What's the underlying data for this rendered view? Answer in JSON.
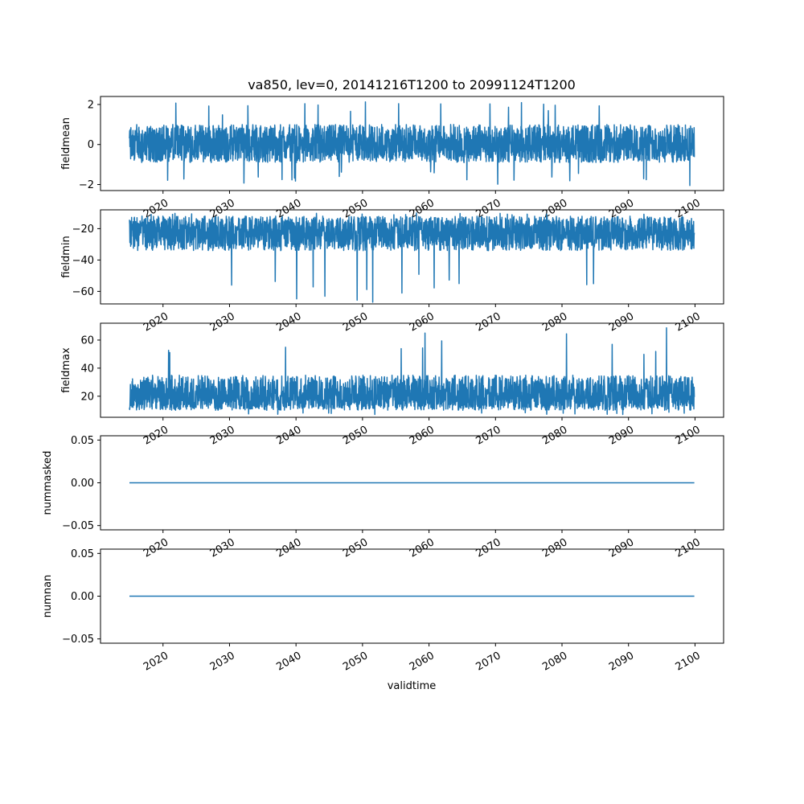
{
  "chart_data": {
    "type": "line",
    "title": "va850, lev=0, 20141216T1200 to 20991124T1200",
    "xlabel": "validtime",
    "x_range": [
      "2014-12-16",
      "2099-11-24"
    ],
    "xlim": [
      2010.6,
      2104.3
    ],
    "x_ticks": [
      "2020",
      "2030",
      "2040",
      "2050",
      "2060",
      "2070",
      "2080",
      "2090",
      "2100"
    ],
    "line_color": "#1f77b4",
    "grid": false,
    "panels": [
      {
        "ylabel": "fieldmean",
        "ylim": [
          -2.3,
          2.4
        ],
        "yticks": [
          -2,
          0,
          2
        ],
        "ytick_labels": [
          "−2",
          "0",
          "2"
        ],
        "signal": {
          "type": "noise",
          "center": 0.0,
          "lower_core": -0.9,
          "upper_core": 1.0,
          "min": -2.05,
          "max": 2.15
        }
      },
      {
        "ylabel": "fieldmin",
        "ylim": [
          -68,
          -8
        ],
        "yticks": [
          -60,
          -40,
          -20
        ],
        "ytick_labels": [
          "−60",
          "−40",
          "−20"
        ],
        "signal": {
          "type": "noise",
          "center": -22,
          "lower_core": -34,
          "upper_core": -12,
          "min": -67,
          "max": -10
        }
      },
      {
        "ylabel": "fieldmax",
        "ylim": [
          5,
          72
        ],
        "yticks": [
          20,
          40,
          60
        ],
        "ytick_labels": [
          "20",
          "40",
          "60"
        ],
        "signal": {
          "type": "noise",
          "center": 20,
          "lower_core": 10,
          "upper_core": 35,
          "min": 7,
          "max": 69
        }
      },
      {
        "ylabel": "nummasked",
        "ylim": [
          -0.055,
          0.055
        ],
        "yticks": [
          -0.05,
          0.0,
          0.05
        ],
        "ytick_labels": [
          "−0.05",
          "0.00",
          "0.05"
        ],
        "signal": {
          "type": "constant",
          "value": 0.0
        }
      },
      {
        "ylabel": "numnan",
        "ylim": [
          -0.055,
          0.055
        ],
        "yticks": [
          -0.05,
          0.0,
          0.05
        ],
        "ytick_labels": [
          "−0.05",
          "0.00",
          "0.05"
        ],
        "signal": {
          "type": "constant",
          "value": 0.0
        }
      }
    ]
  }
}
